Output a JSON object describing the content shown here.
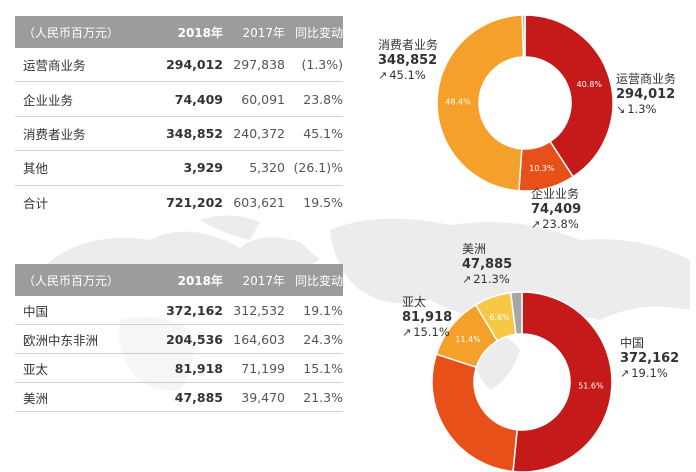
{
  "colors": {
    "header_bg": "#9c9c9c",
    "dark_red": "#c41a1a",
    "orange_red": "#e8501a",
    "orange": "#f5a02a",
    "yellow": "#f6c845",
    "grey": "#a6a6a6",
    "map": "#ececec"
  },
  "table1": {
    "headers": [
      "（人民币百万元）",
      "2018年",
      "2017年",
      "同比变动"
    ],
    "rows": [
      [
        "运营商业务",
        "294,012",
        "297,838",
        "(1.3%)"
      ],
      [
        "企业业务",
        "74,409",
        "60,091",
        "23.8%"
      ],
      [
        "消费者业务",
        "348,852",
        "240,372",
        "45.1%"
      ],
      [
        "其他",
        "3,929",
        "5,320",
        "(26.1)%"
      ],
      [
        "合计",
        "721,202",
        "603,621",
        "19.5%"
      ]
    ]
  },
  "table2": {
    "headers": [
      "（人民币百万元）",
      "2018年",
      "2017年",
      "同比变动"
    ],
    "rows": [
      [
        "中国",
        "372,162",
        "312,532",
        "19.1%"
      ],
      [
        "欧洲中东非洲",
        "204,536",
        "164,603",
        "24.3%"
      ],
      [
        "亚太",
        "81,918",
        "71,199",
        "15.1%"
      ],
      [
        "美洲",
        "47,885",
        "39,470",
        "21.3%"
      ]
    ]
  },
  "chart_data": [
    {
      "type": "pie",
      "categories": [
        "运营商业务",
        "企业业务",
        "消费者业务",
        "其他"
      ],
      "values": [
        40.8,
        10.3,
        48.4,
        0.5
      ],
      "slice_labels": [
        "40.8%",
        "10.3%",
        "48.4%",
        ""
      ],
      "colors": [
        "#c41a1a",
        "#e8501a",
        "#f5a02a",
        "#a6a6a6"
      ],
      "callouts": [
        {
          "name": "运营商业务",
          "value": "294,012",
          "arrow": "↘",
          "change": "1.3%"
        },
        {
          "name": "企业业务",
          "value": "74,409",
          "arrow": "↗",
          "change": "23.8%"
        },
        {
          "name": "消费者业务",
          "value": "348,852",
          "arrow": "↗",
          "change": "45.1%"
        }
      ]
    },
    {
      "type": "pie",
      "categories": [
        "中国",
        "欧洲中东非洲",
        "亚太",
        "美洲",
        "其他"
      ],
      "values": [
        51.6,
        28.4,
        11.4,
        6.6,
        2.0
      ],
      "slice_labels": [
        "51.6%",
        "",
        "11.4%",
        "6.6%",
        ""
      ],
      "colors": [
        "#c41a1a",
        "#e8501a",
        "#f5a02a",
        "#f6c845",
        "#a6a6a6"
      ],
      "callouts": [
        {
          "name": "中国",
          "value": "372,162",
          "arrow": "↗",
          "change": "19.1%"
        },
        {
          "name": "亚太",
          "value": "81,918",
          "arrow": "↗",
          "change": "15.1%"
        },
        {
          "name": "美洲",
          "value": "47,885",
          "arrow": "↗",
          "change": "21.3%"
        }
      ]
    }
  ]
}
